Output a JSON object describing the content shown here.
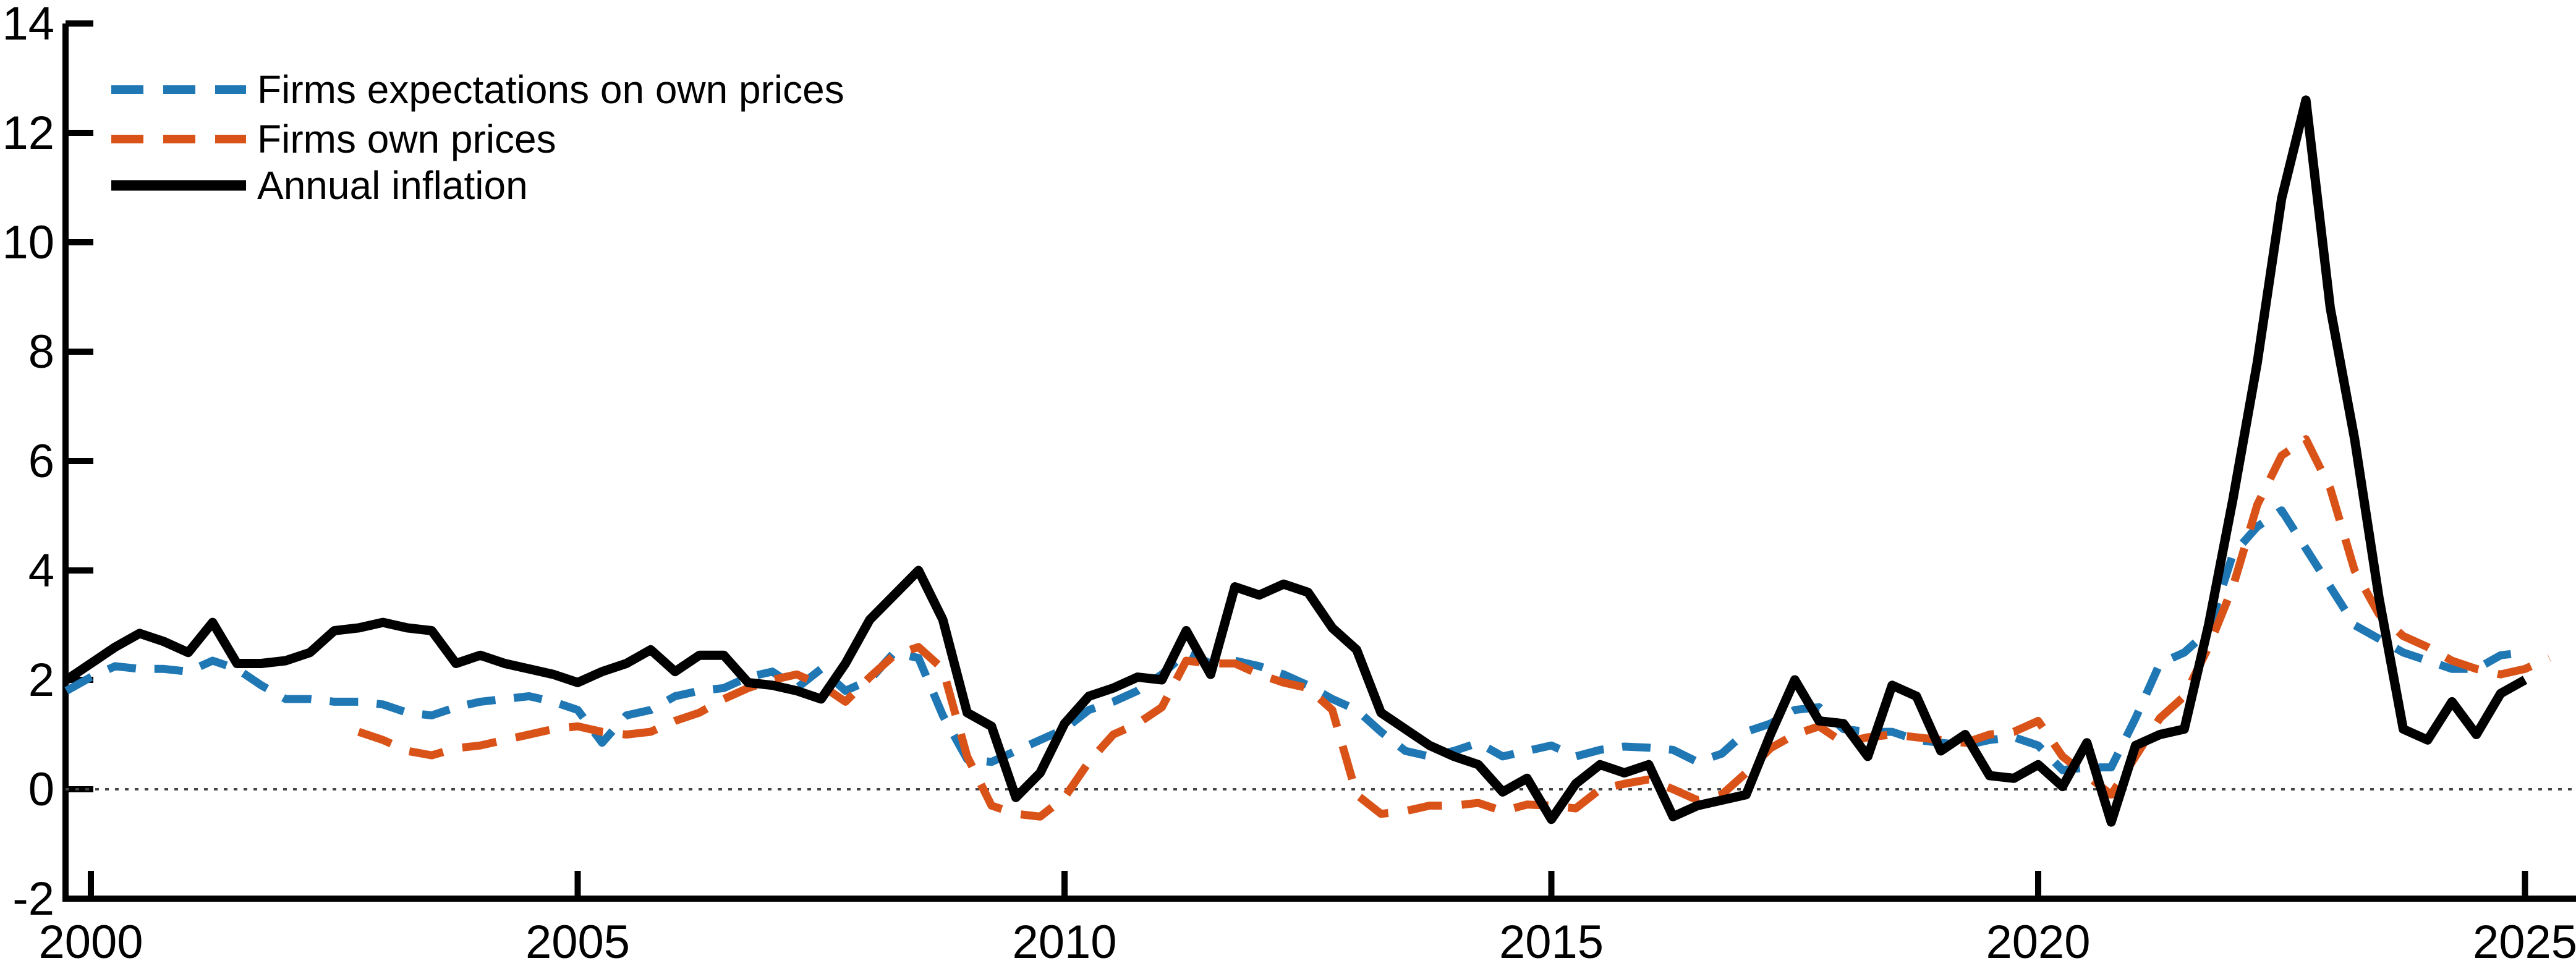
{
  "chart_data": {
    "type": "line",
    "title": "",
    "xlabel": "",
    "ylabel": "",
    "xlim": [
      1999.74,
      2025.5
    ],
    "ylim": [
      -2,
      14
    ],
    "xticks": [
      2000,
      2005,
      2010,
      2015,
      2020,
      2025
    ],
    "yticks": [
      -2,
      0,
      2,
      4,
      6,
      8,
      10,
      12,
      14
    ],
    "zero_line": true,
    "zero_line_color": "#444444",
    "grid": false,
    "legend_position": "top-left",
    "x": [
      1999.75,
      2000,
      2000.25,
      2000.5,
      2000.75,
      2001,
      2001.25,
      2001.5,
      2001.75,
      2002,
      2002.25,
      2002.5,
      2002.75,
      2003,
      2003.25,
      2003.5,
      2003.75,
      2004,
      2004.25,
      2004.5,
      2004.75,
      2005,
      2005.25,
      2005.5,
      2005.75,
      2006,
      2006.25,
      2006.5,
      2006.75,
      2007,
      2007.25,
      2007.5,
      2007.75,
      2008,
      2008.25,
      2008.5,
      2008.75,
      2009,
      2009.25,
      2009.5,
      2009.75,
      2010,
      2010.25,
      2010.5,
      2010.75,
      2011,
      2011.25,
      2011.5,
      2011.75,
      2012,
      2012.25,
      2012.5,
      2012.75,
      2013,
      2013.25,
      2013.5,
      2013.75,
      2014,
      2014.25,
      2014.5,
      2014.75,
      2015,
      2015.25,
      2015.5,
      2015.75,
      2016,
      2016.25,
      2016.5,
      2016.75,
      2017,
      2017.25,
      2017.5,
      2017.75,
      2018,
      2018.25,
      2018.5,
      2018.75,
      2019,
      2019.25,
      2019.5,
      2019.75,
      2020,
      2020.25,
      2020.5,
      2020.75,
      2021,
      2021.25,
      2021.5,
      2021.75,
      2022,
      2022.25,
      2022.5,
      2022.75,
      2023,
      2023.25,
      2023.5,
      2023.75,
      2024,
      2024.25,
      2024.5,
      2024.75,
      2025,
      2025.25
    ],
    "series": [
      {
        "name": "Firms expectations on own prices",
        "color": "#1f77b4",
        "style": "dashed",
        "values": [
          1.8,
          2.05,
          2.25,
          2.2,
          2.2,
          2.15,
          2.35,
          2.2,
          1.9,
          1.65,
          1.65,
          1.6,
          1.6,
          1.55,
          1.4,
          1.35,
          1.5,
          1.6,
          1.65,
          1.7,
          1.6,
          1.45,
          0.85,
          1.35,
          1.45,
          1.7,
          1.8,
          1.85,
          2.05,
          2.15,
          1.85,
          2.2,
          1.8,
          2.0,
          2.5,
          2.4,
          1.35,
          0.55,
          0.5,
          0.7,
          0.9,
          1.1,
          1.45,
          1.6,
          1.8,
          2.1,
          2.5,
          2.3,
          2.35,
          2.25,
          2.1,
          1.9,
          1.65,
          1.45,
          1.05,
          0.7,
          0.6,
          0.7,
          0.85,
          0.6,
          0.7,
          0.8,
          0.6,
          0.72,
          0.78,
          0.76,
          0.72,
          0.5,
          0.65,
          1.05,
          1.2,
          1.45,
          1.5,
          1.1,
          1.05,
          1.05,
          0.9,
          0.85,
          0.8,
          0.9,
          0.95,
          0.8,
          0.35,
          0.4,
          0.4,
          1.3,
          2.3,
          2.5,
          2.9,
          4.3,
          4.8,
          5.1,
          4.4,
          3.7,
          3.0,
          2.75,
          2.5,
          2.35,
          2.2,
          2.2,
          2.45,
          2.5,
          null
        ]
      },
      {
        "name": "Firms own prices",
        "color": "#d95319",
        "style": "dashed",
        "values": [
          null,
          null,
          null,
          null,
          null,
          null,
          null,
          null,
          null,
          null,
          null,
          null,
          1.05,
          0.9,
          0.7,
          0.62,
          0.75,
          0.8,
          0.9,
          1.0,
          1.1,
          1.15,
          1.05,
          1.0,
          1.05,
          1.25,
          1.4,
          1.65,
          1.85,
          2.0,
          2.1,
          1.9,
          1.6,
          2.05,
          2.45,
          2.6,
          2.2,
          0.6,
          -0.3,
          -0.45,
          -0.5,
          -0.15,
          0.5,
          1.0,
          1.2,
          1.5,
          2.35,
          2.3,
          2.3,
          2.1,
          1.95,
          1.85,
          1.45,
          -0.1,
          -0.45,
          -0.4,
          -0.3,
          -0.3,
          -0.25,
          -0.4,
          -0.28,
          -0.3,
          -0.35,
          0.0,
          0.1,
          0.18,
          0.0,
          -0.2,
          -0.1,
          0.3,
          0.75,
          1.0,
          1.15,
          0.85,
          0.95,
          1.0,
          0.95,
          0.9,
          0.85,
          1.0,
          1.05,
          1.25,
          0.6,
          0.25,
          -0.1,
          0.6,
          1.3,
          1.7,
          2.6,
          3.7,
          5.2,
          6.1,
          6.4,
          5.5,
          4.0,
          3.2,
          2.8,
          2.6,
          2.35,
          2.2,
          2.1,
          2.2,
          2.4
        ]
      },
      {
        "name": "Annual inflation",
        "color": "#000000",
        "style": "solid",
        "values": [
          2.0,
          2.3,
          2.6,
          2.85,
          2.7,
          2.5,
          3.05,
          2.3,
          2.3,
          2.35,
          2.5,
          2.9,
          2.95,
          3.05,
          2.95,
          2.9,
          2.3,
          2.45,
          2.3,
          2.2,
          2.1,
          1.95,
          2.15,
          2.3,
          2.55,
          2.15,
          2.45,
          2.45,
          1.95,
          1.9,
          1.8,
          1.65,
          2.3,
          3.1,
          3.55,
          4.0,
          3.1,
          1.4,
          1.15,
          -0.15,
          0.3,
          1.2,
          1.7,
          1.85,
          2.05,
          2.0,
          2.9,
          2.1,
          3.7,
          3.55,
          3.75,
          3.6,
          2.95,
          2.55,
          1.4,
          1.1,
          0.8,
          0.6,
          0.45,
          -0.05,
          0.2,
          -0.55,
          0.1,
          0.45,
          0.3,
          0.45,
          -0.5,
          -0.3,
          -0.2,
          -0.1,
          1.0,
          2.0,
          1.25,
          1.2,
          0.6,
          1.9,
          1.7,
          0.7,
          1.0,
          0.25,
          0.2,
          0.45,
          0.05,
          0.85,
          -0.6,
          0.8,
          1.0,
          1.1,
          3.0,
          5.3,
          7.8,
          10.8,
          12.6,
          8.8,
          6.4,
          3.5,
          1.1,
          0.9,
          1.6,
          1.0,
          1.75,
          2.0,
          null
        ]
      }
    ],
    "legend": [
      "Firms expectations on own prices",
      "Firms own prices",
      "Annual inflation"
    ]
  }
}
